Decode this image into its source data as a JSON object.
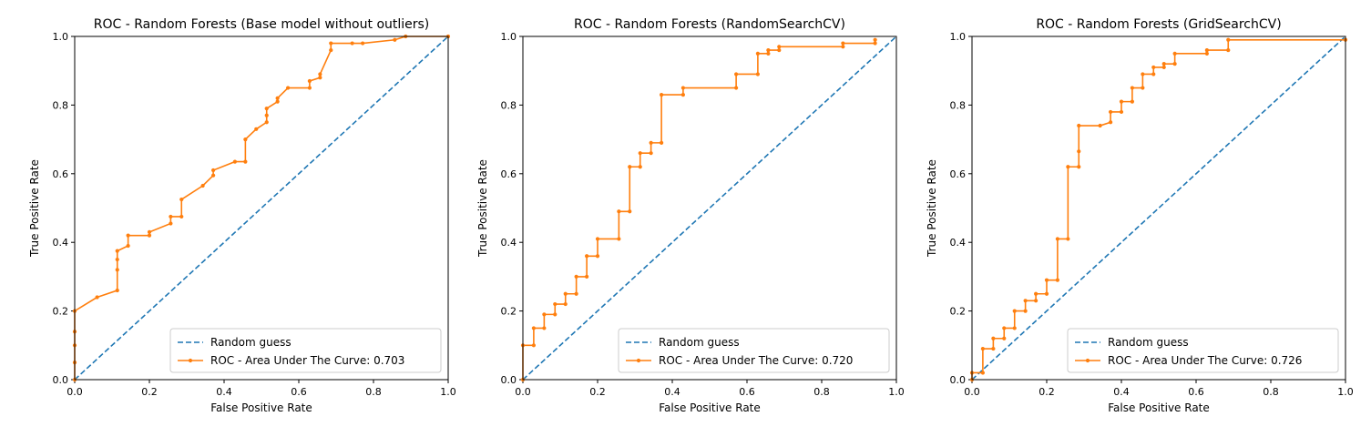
{
  "chart_data": [
    {
      "type": "line",
      "title": "ROC - Random Forests (Base model without outliers)",
      "xlabel": "False Positive Rate",
      "ylabel": "True Positive Rate",
      "xlim": [
        0,
        1
      ],
      "ylim": [
        0,
        1
      ],
      "xticks": [
        "0.0",
        "0.2",
        "0.4",
        "0.6",
        "0.8",
        "1.0"
      ],
      "yticks": [
        "0.0",
        "0.2",
        "0.4",
        "0.6",
        "0.8",
        "1.0"
      ],
      "grid": false,
      "legend_position": "lower-right",
      "series": [
        {
          "name": "Random guess",
          "style": "dashed",
          "color": "#1f77b4",
          "x": [
            0,
            1
          ],
          "y": [
            0,
            1
          ]
        },
        {
          "name": "ROC - Area Under The Curve: 0.703",
          "style": "solid-marker",
          "color": "#ff7f0e",
          "x": [
            0,
            0,
            0,
            0,
            0,
            0.06,
            0.114,
            0.114,
            0.114,
            0.114,
            0.143,
            0.143,
            0.2,
            0.2,
            0.257,
            0.257,
            0.286,
            0.286,
            0.343,
            0.371,
            0.371,
            0.429,
            0.457,
            0.457,
            0.486,
            0.514,
            0.514,
            0.514,
            0.543,
            0.543,
            0.571,
            0.629,
            0.629,
            0.657,
            0.657,
            0.686,
            0.686,
            0.743,
            0.771,
            0.857,
            0.886,
            1.0
          ],
          "y": [
            0,
            0.05,
            0.1,
            0.14,
            0.2,
            0.24,
            0.26,
            0.32,
            0.35,
            0.375,
            0.39,
            0.42,
            0.42,
            0.43,
            0.455,
            0.475,
            0.475,
            0.525,
            0.565,
            0.595,
            0.61,
            0.635,
            0.635,
            0.7,
            0.73,
            0.75,
            0.77,
            0.79,
            0.81,
            0.82,
            0.85,
            0.85,
            0.87,
            0.88,
            0.89,
            0.96,
            0.98,
            0.98,
            0.98,
            0.99,
            1.0,
            1.0
          ]
        }
      ]
    },
    {
      "type": "line",
      "title": "ROC - Random Forests (RandomSearchCV)",
      "xlabel": "False Positive Rate",
      "ylabel": "True Positive Rate",
      "xlim": [
        0,
        1
      ],
      "ylim": [
        0,
        1
      ],
      "xticks": [
        "0.0",
        "0.2",
        "0.4",
        "0.6",
        "0.8",
        "1.0"
      ],
      "yticks": [
        "0.0",
        "0.2",
        "0.4",
        "0.6",
        "0.8",
        "1.0"
      ],
      "grid": false,
      "legend_position": "lower-right",
      "series": [
        {
          "name": "Random guess",
          "style": "dashed",
          "color": "#1f77b4",
          "x": [
            0,
            1
          ],
          "y": [
            0,
            1
          ]
        },
        {
          "name": "ROC - Area Under The Curve: 0.720",
          "style": "solid-marker",
          "color": "#ff7f0e",
          "x": [
            0,
            0,
            0.029,
            0.029,
            0.057,
            0.057,
            0.086,
            0.086,
            0.114,
            0.114,
            0.143,
            0.143,
            0.171,
            0.171,
            0.2,
            0.2,
            0.257,
            0.257,
            0.286,
            0.286,
            0.314,
            0.314,
            0.343,
            0.343,
            0.371,
            0.371,
            0.429,
            0.429,
            0.571,
            0.571,
            0.629,
            0.629,
            0.657,
            0.657,
            0.686,
            0.686,
            0.857,
            0.857,
            0.943,
            0.943
          ],
          "y": [
            0,
            0.1,
            0.1,
            0.15,
            0.15,
            0.19,
            0.19,
            0.22,
            0.22,
            0.25,
            0.25,
            0.3,
            0.3,
            0.36,
            0.36,
            0.41,
            0.41,
            0.49,
            0.49,
            0.62,
            0.62,
            0.66,
            0.66,
            0.69,
            0.69,
            0.83,
            0.83,
            0.85,
            0.85,
            0.89,
            0.89,
            0.95,
            0.95,
            0.96,
            0.96,
            0.97,
            0.97,
            0.98,
            0.98,
            0.99
          ]
        }
      ]
    },
    {
      "type": "line",
      "title": "ROC - Random Forests (GridSearchCV)",
      "xlabel": "False Positive Rate",
      "ylabel": "True Positive Rate",
      "xlim": [
        0,
        1
      ],
      "ylim": [
        0,
        1
      ],
      "xticks": [
        "0.0",
        "0.2",
        "0.4",
        "0.6",
        "0.8",
        "1.0"
      ],
      "yticks": [
        "0.0",
        "0.2",
        "0.4",
        "0.6",
        "0.8",
        "1.0"
      ],
      "grid": false,
      "legend_position": "lower-right",
      "series": [
        {
          "name": "Random guess",
          "style": "dashed",
          "color": "#1f77b4",
          "x": [
            0,
            1
          ],
          "y": [
            0,
            1
          ]
        },
        {
          "name": "ROC - Area Under The Curve: 0.726",
          "style": "solid-marker",
          "color": "#ff7f0e",
          "x": [
            0,
            0,
            0.029,
            0.029,
            0.057,
            0.057,
            0.086,
            0.086,
            0.114,
            0.114,
            0.143,
            0.143,
            0.171,
            0.171,
            0.2,
            0.2,
            0.229,
            0.229,
            0.257,
            0.257,
            0.286,
            0.286,
            0.286,
            0.343,
            0.371,
            0.371,
            0.4,
            0.4,
            0.429,
            0.429,
            0.457,
            0.457,
            0.486,
            0.486,
            0.514,
            0.514,
            0.543,
            0.543,
            0.629,
            0.629,
            0.686,
            0.686,
            1.0
          ],
          "y": [
            0,
            0.02,
            0.02,
            0.09,
            0.09,
            0.12,
            0.12,
            0.15,
            0.15,
            0.2,
            0.2,
            0.23,
            0.23,
            0.25,
            0.25,
            0.29,
            0.29,
            0.41,
            0.41,
            0.62,
            0.62,
            0.665,
            0.74,
            0.74,
            0.75,
            0.78,
            0.78,
            0.81,
            0.81,
            0.85,
            0.85,
            0.89,
            0.89,
            0.91,
            0.91,
            0.92,
            0.92,
            0.95,
            0.95,
            0.96,
            0.96,
            0.99,
            0.99
          ]
        }
      ]
    }
  ]
}
